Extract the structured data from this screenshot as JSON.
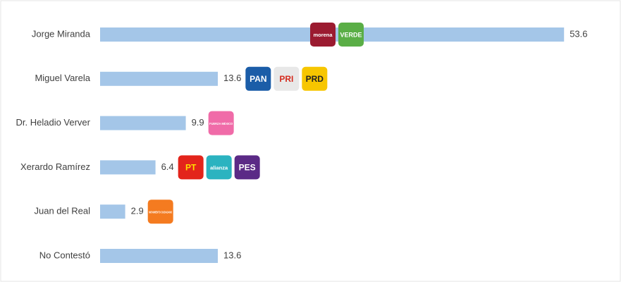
{
  "chart_data": {
    "type": "bar",
    "orientation": "horizontal",
    "categories": [
      "Jorge Miranda",
      "Miguel Varela",
      "Dr. Heladio Verver",
      "Xerardo Ramírez",
      "Juan del Real",
      "No Contestó"
    ],
    "values": [
      53.6,
      13.6,
      9.9,
      6.4,
      2.9,
      13.6
    ],
    "color": "#a4c6e8",
    "logos": [
      [
        {
          "text": "morena",
          "color": "#9b1b30",
          "text_color": "#ffffff"
        },
        {
          "text": "VERDE",
          "color": "#5aae46",
          "text_color": "#ffffff"
        }
      ],
      [
        {
          "text": "PAN",
          "color": "#1b5da8",
          "text_color": "#ffffff"
        },
        {
          "text": "PRI",
          "color": "#e8e8e8",
          "text_color": "#d52b1e"
        },
        {
          "text": "PRD",
          "color": "#f7c600",
          "text_color": "#222222"
        }
      ],
      [
        {
          "text": "FUERZA MÉXICO",
          "color": "#f06ba8",
          "text_color": "#ffffff"
        }
      ],
      [
        {
          "text": "PT",
          "color": "#e3241b",
          "text_color": "#ffe000"
        },
        {
          "text": "alianza",
          "color": "#2bb3c0",
          "text_color": "#ffffff"
        },
        {
          "text": "PES",
          "color": "#5b2a86",
          "text_color": "#ffffff"
        }
      ],
      [
        {
          "text": "MOVIMIENTO CIUDADANO",
          "color": "#f47b20",
          "text_color": "#ffffff"
        }
      ],
      []
    ]
  }
}
